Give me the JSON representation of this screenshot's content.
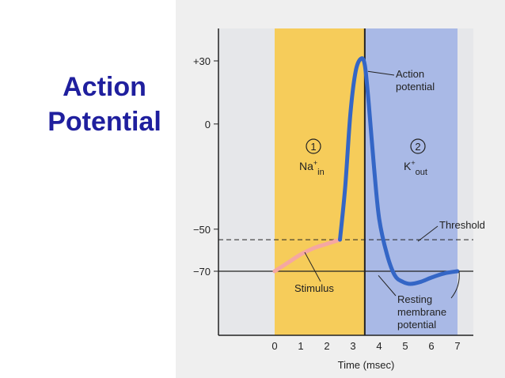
{
  "slide": {
    "title_line1": "Action",
    "title_line2": "Potential"
  },
  "colors": {
    "title": "#1f1f9e",
    "phase1": "#f6cc5a",
    "phase2": "#a9b9e6",
    "curve": "#3466c6",
    "stimulus": "#f5a7a2",
    "axis": "#222222"
  },
  "chart_data": {
    "type": "line",
    "title": "",
    "xlabel": "Time (msec)",
    "ylabel": "",
    "xlim": [
      0,
      7
    ],
    "ylim": [
      -85,
      40
    ],
    "x_ticks": [
      0,
      1,
      2,
      3,
      4,
      5,
      6,
      7
    ],
    "y_ticks": [
      {
        "value": 30,
        "label": "+30"
      },
      {
        "value": 0,
        "label": "0"
      },
      {
        "value": -50,
        "label": "−50"
      },
      {
        "value": -70,
        "label": "−70"
      }
    ],
    "series": [
      {
        "x": [
          0,
          0.5,
          1,
          1.5,
          2,
          2.5
        ],
        "y": [
          -70,
          -66,
          -62,
          -59,
          -57,
          -55
        ]
      },
      {
        "x": [
          2.5,
          2.7,
          2.9,
          3.1,
          3.3,
          3.45,
          3.6,
          3.8,
          4.0,
          4.3,
          4.6,
          4.9,
          5.2,
          5.6,
          6.0,
          6.5,
          7.0
        ],
        "y": [
          -55,
          -30,
          5,
          25,
          31,
          28,
          10,
          -20,
          -45,
          -62,
          -72,
          -75,
          -76,
          -75,
          -73,
          -71,
          -70
        ]
      }
    ],
    "phases": [
      {
        "number": "1",
        "ion": "Na",
        "superscript": "+",
        "subscript": "in",
        "x_from": 0,
        "x_to": 3.45
      },
      {
        "number": "2",
        "ion": "K",
        "superscript": "+",
        "subscript": "out",
        "x_from": 3.45,
        "x_to": 7
      }
    ],
    "reference_lines": [
      {
        "y": -55,
        "style": "dashed"
      },
      {
        "y": -70,
        "style": "solid"
      }
    ],
    "annotations": [
      {
        "text_lines": [
          "Action",
          "potential"
        ]
      },
      {
        "text_lines": [
          "Threshold"
        ]
      },
      {
        "text_lines": [
          "Stimulus"
        ]
      },
      {
        "text_lines": [
          "Resting",
          "membrane",
          "potential"
        ]
      }
    ]
  }
}
